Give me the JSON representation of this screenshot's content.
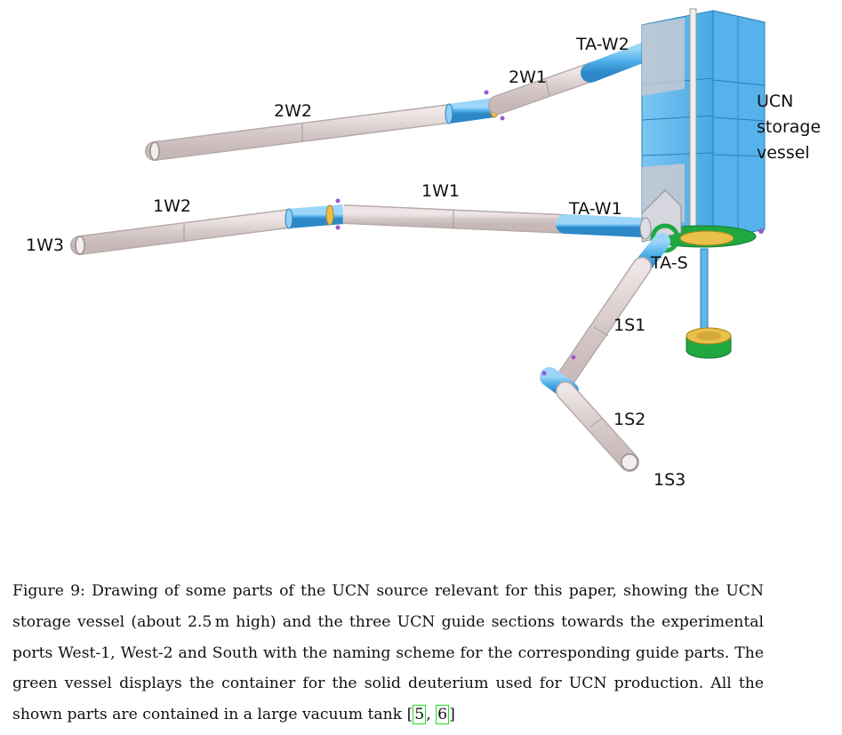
{
  "figure": {
    "labels": {
      "ta_w2": "TA-W2",
      "w2_1": "2W1",
      "w2_2": "2W2",
      "ucn_line1": "UCN",
      "ucn_line2": "storage",
      "ucn_line3": "vessel",
      "w1_1": "1W1",
      "w1_2": "1W2",
      "w1_3": "1W3",
      "ta_w1": "TA-W1",
      "ta_s": "TA-S",
      "s_1": "1S1",
      "s_2": "1S2",
      "s_3": "1S3"
    },
    "colors": {
      "guide_tube": "#ddd2d2",
      "guide_edge": "#b7aaaa",
      "blue_part": "#5fb6ec",
      "vessel_blue": "#3fa6e2",
      "green_part": "#20a840",
      "yellow_part": "#e8c04a"
    }
  },
  "caption": {
    "prefix": "Figure 9: Drawing of some parts of the UCN source relevant for this paper, showing the UCN storage vessel (about 2.5 m high) and the three UCN guide sections towards the experimental ports West-1, West-2 and South with the naming scheme for the corresponding guide parts. The green vessel displays the container for the solid deuterium used for UCN production. All the shown parts are contained in a large vacuum tank ",
    "ref1": "5",
    "sep": ", ",
    "ref2": "6",
    "suffix": ""
  }
}
